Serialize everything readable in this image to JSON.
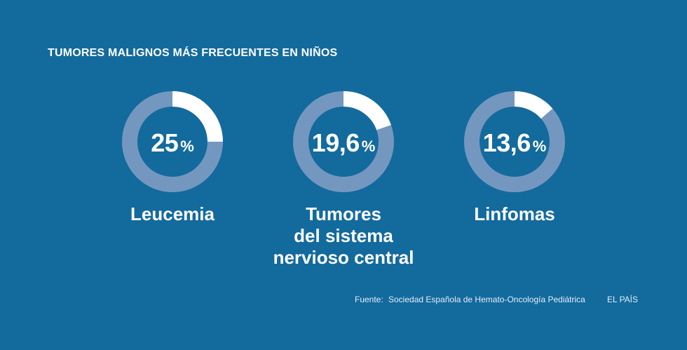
{
  "title": "TUMORES MALIGNOS MÁS FRECUENTES EN NIÑOS",
  "chart_data": {
    "type": "donut",
    "title": "TUMORES MALIGNOS MÁS FRECUENTES EN NIÑOS",
    "unit": "%",
    "items": [
      {
        "category": "Leucemia",
        "value": 25,
        "display": "25"
      },
      {
        "category": "Tumores del sistema nervioso central",
        "value": 19.6,
        "display": "19,6"
      },
      {
        "category": "Linfomas",
        "value": 13.6,
        "display": "13,6"
      }
    ]
  },
  "charts": [
    {
      "value_display": "25",
      "unit": "%",
      "label_lines": [
        "Leucemia"
      ]
    },
    {
      "value_display": "19,6",
      "unit": "%",
      "label_lines": [
        "Tumores",
        "del sistema",
        "nervioso central"
      ]
    },
    {
      "value_display": "13,6",
      "unit": "%",
      "label_lines": [
        "Linfomas"
      ]
    }
  ],
  "footer": {
    "source_label": "Fuente:",
    "source_text": "Sociedad Española de Hemato-Oncología Pediátrica",
    "brand": "EL PAÍS"
  },
  "colors": {
    "background": "#136a9d",
    "ring_track": "#7497c0",
    "ring_fill": "#ffffff"
  }
}
